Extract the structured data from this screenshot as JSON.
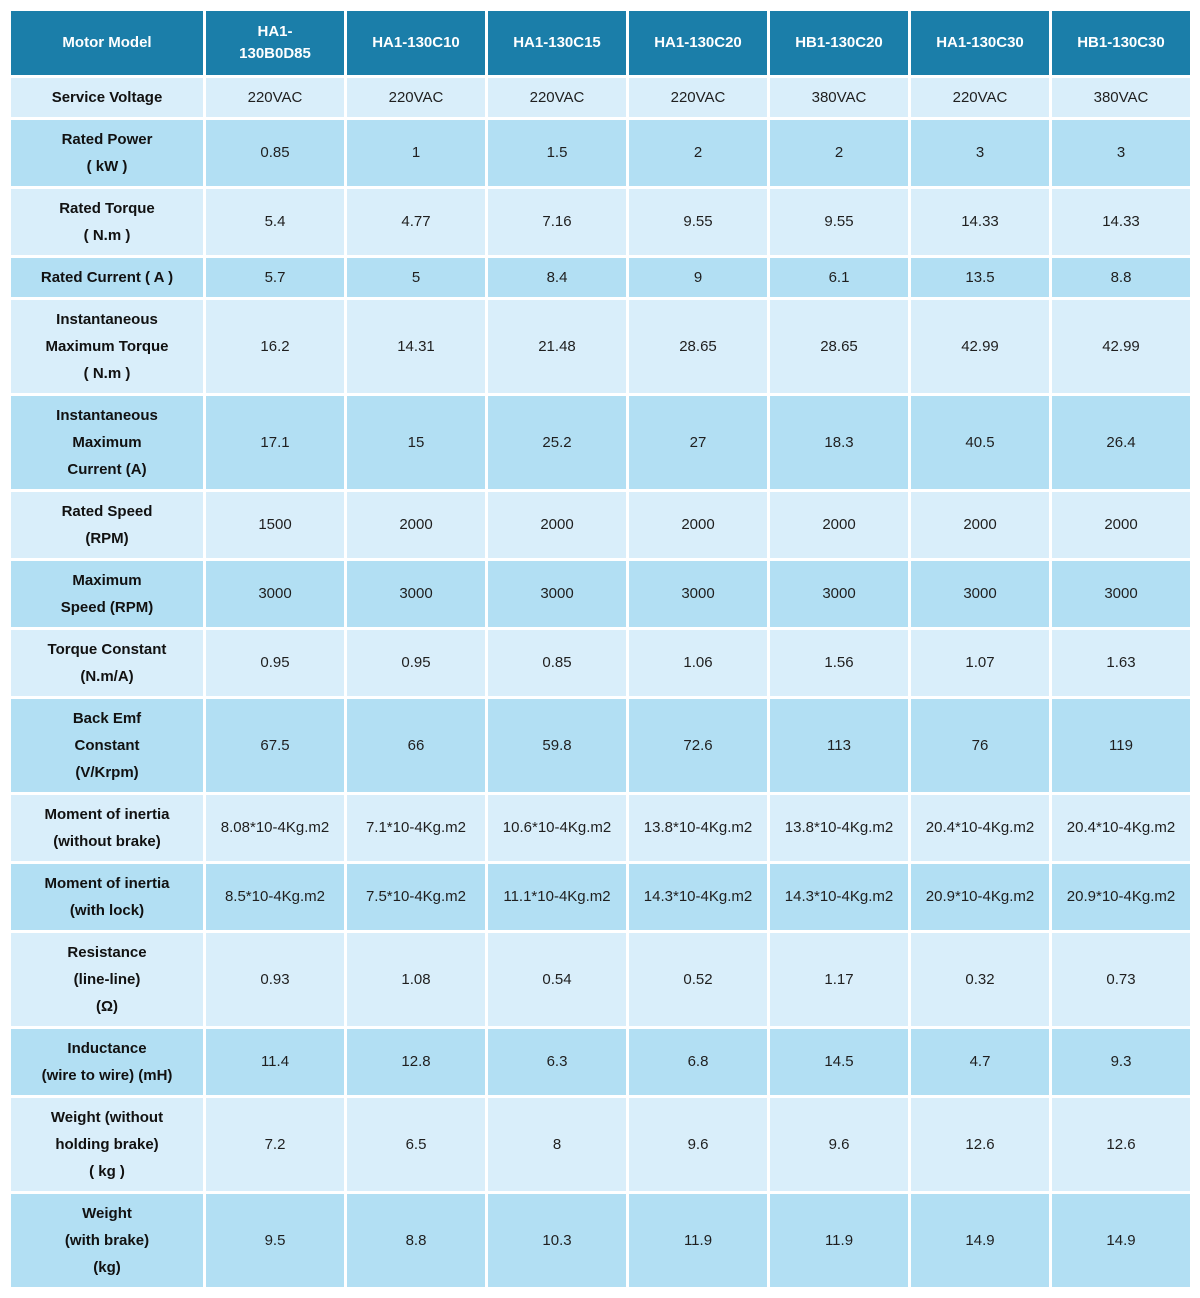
{
  "colors": {
    "header_bg": "#1b7ea9",
    "header_text": "#ffffff",
    "row_light": "#d9eefa",
    "row_dark": "#b2dff3",
    "gridline": "#ffffff",
    "cell_text": "#1f1f1f"
  },
  "table": {
    "corner_label": "Motor Model",
    "model_columns": [
      {
        "lines": [
          "HA1-",
          "130B0D85"
        ]
      },
      {
        "lines": [
          "HA1-130C10"
        ]
      },
      {
        "lines": [
          "HA1-130C15"
        ]
      },
      {
        "lines": [
          "HA1-130C20"
        ]
      },
      {
        "lines": [
          "HB1-130C20"
        ]
      },
      {
        "lines": [
          "HA1-130C30"
        ]
      },
      {
        "lines": [
          "HB1-130C30"
        ]
      }
    ],
    "rows": [
      {
        "id": "service-voltage",
        "label_lines": [
          "Service Voltage"
        ],
        "values": [
          "220VAC",
          "220VAC",
          "220VAC",
          "220VAC",
          "380VAC",
          "220VAC",
          "380VAC"
        ]
      },
      {
        "id": "rated-power",
        "label_lines": [
          "Rated Power",
          "( kW )"
        ],
        "values": [
          "0.85",
          "1",
          "1.5",
          "2",
          "2",
          "3",
          "3"
        ]
      },
      {
        "id": "rated-torque",
        "label_lines": [
          "Rated Torque",
          "( N.m )"
        ],
        "values": [
          "5.4",
          "4.77",
          "7.16",
          "9.55",
          "9.55",
          "14.33",
          "14.33"
        ]
      },
      {
        "id": "rated-current",
        "label_lines": [
          "Rated Current ( A )"
        ],
        "values": [
          "5.7",
          "5",
          "8.4",
          "9",
          "6.1",
          "13.5",
          "8.8"
        ]
      },
      {
        "id": "instantaneous-maximum-torque",
        "label_lines": [
          "Instantaneous",
          "Maximum Torque",
          "( N.m )"
        ],
        "values": [
          "16.2",
          "14.31",
          "21.48",
          "28.65",
          "28.65",
          "42.99",
          "42.99"
        ]
      },
      {
        "id": "instantaneous-maximum-current",
        "label_lines": [
          "Instantaneous",
          "Maximum",
          "Current (A)"
        ],
        "values": [
          "17.1",
          "15",
          "25.2",
          "27",
          "18.3",
          "40.5",
          "26.4"
        ]
      },
      {
        "id": "rated-speed",
        "label_lines": [
          "Rated Speed",
          "(RPM)"
        ],
        "values": [
          "1500",
          "2000",
          "2000",
          "2000",
          "2000",
          "2000",
          "2000"
        ]
      },
      {
        "id": "maximum-speed",
        "label_lines": [
          "Maximum",
          "Speed (RPM)"
        ],
        "values": [
          "3000",
          "3000",
          "3000",
          "3000",
          "3000",
          "3000",
          "3000"
        ]
      },
      {
        "id": "torque-constant",
        "label_lines": [
          "Torque Constant",
          "(N.m/A)"
        ],
        "values": [
          "0.95",
          "0.95",
          "0.85",
          "1.06",
          "1.56",
          "1.07",
          "1.63"
        ]
      },
      {
        "id": "back-emf-constant",
        "label_lines": [
          "Back Emf",
          "Constant",
          "(V/Krpm)"
        ],
        "values": [
          "67.5",
          "66",
          "59.8",
          "72.6",
          "113",
          "76",
          "119"
        ]
      },
      {
        "id": "moment-of-inertia-without-brake",
        "label_lines": [
          "Moment of inertia",
          "(without brake)"
        ],
        "values": [
          "8.08*10-4Kg.m2",
          "7.1*10-4Kg.m2",
          "10.6*10-4Kg.m2",
          "13.8*10-4Kg.m2",
          "13.8*10-4Kg.m2",
          "20.4*10-4Kg.m2",
          "20.4*10-4Kg.m2"
        ]
      },
      {
        "id": "moment-of-inertia-with-lock",
        "label_lines": [
          "Moment of inertia",
          "(with lock)"
        ],
        "values": [
          "8.5*10-4Kg.m2",
          "7.5*10-4Kg.m2",
          "11.1*10-4Kg.m2",
          "14.3*10-4Kg.m2",
          "14.3*10-4Kg.m2",
          "20.9*10-4Kg.m2",
          "20.9*10-4Kg.m2"
        ]
      },
      {
        "id": "resistance",
        "label_lines": [
          "Resistance",
          "(line-line)",
          "(Ω)"
        ],
        "values": [
          "0.93",
          "1.08",
          "0.54",
          "0.52",
          "1.17",
          "0.32",
          "0.73"
        ]
      },
      {
        "id": "inductance",
        "label_lines": [
          "Inductance",
          "(wire to wire) (mH)"
        ],
        "values": [
          "11.4",
          "12.8",
          "6.3",
          "6.8",
          "14.5",
          "4.7",
          "9.3"
        ]
      },
      {
        "id": "weight-without-holding-brake",
        "label_lines": [
          "Weight (without",
          "holding brake)",
          "( kg )"
        ],
        "values": [
          "7.2",
          "6.5",
          "8",
          "9.6",
          "9.6",
          "12.6",
          "12.6"
        ]
      },
      {
        "id": "weight-with-brake",
        "label_lines": [
          "Weight",
          "(with brake)",
          "(kg)"
        ],
        "values": [
          "9.5",
          "8.8",
          "10.3",
          "11.9",
          "11.9",
          "14.9",
          "14.9"
        ]
      }
    ]
  }
}
